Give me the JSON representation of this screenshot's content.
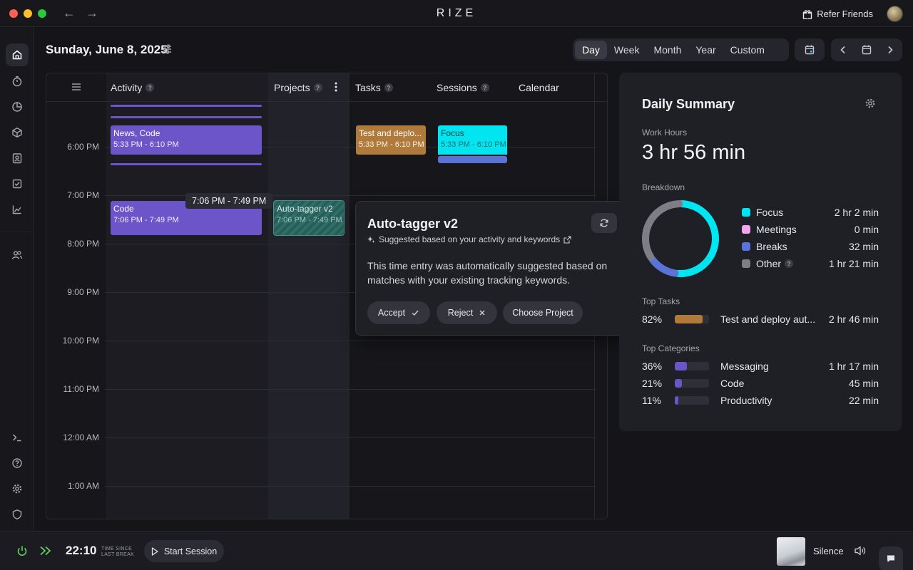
{
  "window": {
    "brand": "RIZE",
    "refer_label": "Refer Friends"
  },
  "header": {
    "date_title": "Sunday, June 8, 2025",
    "ranges": [
      "Day",
      "Week",
      "Month",
      "Year",
      "Custom"
    ],
    "active_range": "Day"
  },
  "sidebar": {
    "items": [
      "home",
      "timer",
      "pie-chart",
      "box",
      "contacts",
      "tasks",
      "trends",
      "team",
      "terminal",
      "help",
      "settings",
      "shield"
    ]
  },
  "timeline": {
    "columns": {
      "activity": "Activity",
      "projects": "Projects",
      "tasks": "Tasks",
      "sessions": "Sessions",
      "calendar": "Calendar"
    },
    "hours": [
      "6:00 PM",
      "7:00 PM",
      "8:00 PM",
      "9:00 PM",
      "10:00 PM",
      "11:00 PM",
      "12:00 AM",
      "1:00 AM"
    ],
    "events": {
      "news_code": {
        "title": "News, Code",
        "time": "5:33 PM - 6:10 PM"
      },
      "task_deploy": {
        "title": "Test and deplo...",
        "time": "5:33 PM - 6:10 PM"
      },
      "focus": {
        "title": "Focus",
        "time": "5:33 PM - 6:10 PM"
      },
      "code": {
        "title": "Code",
        "time": "7:06 PM - 7:49 PM"
      },
      "autotagger": {
        "title": "Auto-tagger v2",
        "time": "7:06 PM - 7:49 PM"
      }
    },
    "hover_tip": "7:06 PM - 7:49 PM",
    "colors": {
      "activity": "#6c55c8",
      "task": "#b07a3a",
      "focus": "#00e5f0",
      "break": "#5b72d6"
    }
  },
  "popover": {
    "title": "Auto-tagger v2",
    "subtitle": "Suggested based on your activity and keywords",
    "body": "This time entry was automatically suggested based on matches with your existing tracking keywords.",
    "accept": "Accept",
    "reject": "Reject",
    "choose": "Choose Project"
  },
  "summary": {
    "title": "Daily Summary",
    "work_hours_label": "Work Hours",
    "work_hours": "3 hr 56 min",
    "breakdown_label": "Breakdown",
    "breakdown": [
      {
        "name": "Focus",
        "value": "2 hr 2 min",
        "color": "#00e5f0"
      },
      {
        "name": "Meetings",
        "value": "0 min",
        "color": "#f2a6f0"
      },
      {
        "name": "Breaks",
        "value": "32 min",
        "color": "#5b72d6"
      },
      {
        "name": "Other",
        "value": "1 hr 21 min",
        "color": "#7e7e86"
      }
    ],
    "donut_minutes": {
      "focus": 122,
      "breaks": 32,
      "other": 81
    },
    "top_tasks_label": "Top Tasks",
    "top_tasks": [
      {
        "pct": "82%",
        "fill": 0.82,
        "name": "Test and deploy aut...",
        "value": "2 hr 46 min",
        "color": "#b07a3a"
      }
    ],
    "top_categories_label": "Top Categories",
    "top_categories": [
      {
        "pct": "36%",
        "fill": 0.36,
        "name": "Messaging",
        "value": "1 hr 17 min",
        "color": "#6c55c8"
      },
      {
        "pct": "21%",
        "fill": 0.21,
        "name": "Code",
        "value": "45 min",
        "color": "#6c55c8"
      },
      {
        "pct": "11%",
        "fill": 0.11,
        "name": "Productivity",
        "value": "22 min",
        "color": "#6c55c8"
      }
    ]
  },
  "footer": {
    "timer": "22:10",
    "timer_caption_1": "TIME SINCE",
    "timer_caption_2": "LAST BREAK",
    "start_session": "Start Session",
    "music": "Silence"
  }
}
